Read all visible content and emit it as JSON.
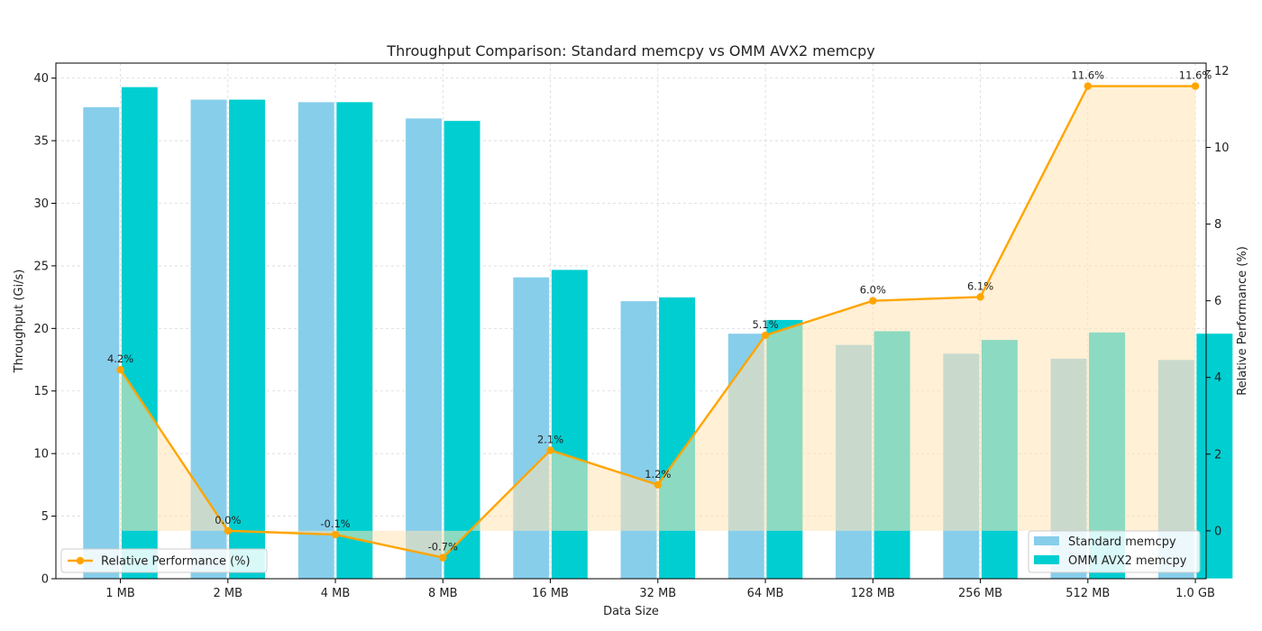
{
  "chart_data": {
    "type": "bar",
    "title": "Throughput Comparison: Standard memcpy vs OMM AVX2 memcpy",
    "xlabel": "Data Size",
    "ylabel": "Throughput (Gi/s)",
    "y2label": "Relative Performance (%)",
    "categories": [
      "1 MB",
      "2 MB",
      "4 MB",
      "8 MB",
      "16 MB",
      "32 MB",
      "64 MB",
      "128 MB",
      "256 MB",
      "512 MB",
      "1.0 GB"
    ],
    "series": [
      {
        "name": "Standard memcpy",
        "axis": "left",
        "kind": "bar",
        "color": "#87CEEB",
        "values": [
          37.7,
          38.3,
          38.1,
          36.8,
          24.1,
          22.2,
          19.6,
          18.7,
          18.0,
          17.6,
          17.5
        ]
      },
      {
        "name": "OMM AVX2 memcpy",
        "axis": "left",
        "kind": "bar",
        "color": "#00CED1",
        "values": [
          39.3,
          38.3,
          38.1,
          36.6,
          24.7,
          22.5,
          20.7,
          19.8,
          19.1,
          19.7,
          19.6
        ]
      },
      {
        "name": "Relative Performance (%)",
        "axis": "right",
        "kind": "line",
        "color": "#FFA500",
        "values": [
          4.2,
          0.0,
          -0.1,
          -0.7,
          2.1,
          1.2,
          5.1,
          6.0,
          6.1,
          11.6,
          11.6
        ],
        "labels": [
          "4.2%",
          "0.0%",
          "-0.1%",
          "-0.7%",
          "2.1%",
          "1.2%",
          "5.1%",
          "6.0%",
          "6.1%",
          "11.6%",
          "11.6%"
        ]
      }
    ],
    "ylim": [
      0,
      41.2
    ],
    "yticks": [
      0,
      5,
      10,
      15,
      20,
      25,
      30,
      35,
      40
    ],
    "y2lim": [
      -1.25,
      12.2
    ],
    "y2ticks": [
      0,
      2,
      4,
      6,
      8,
      10,
      12
    ],
    "fill_color": "#FFE4B5",
    "grid": true,
    "legends": [
      {
        "placement": "lower-left",
        "entries": [
          "Relative Performance (%)"
        ]
      },
      {
        "placement": "lower-right",
        "entries": [
          "Standard memcpy",
          "OMM AVX2 memcpy"
        ]
      }
    ]
  }
}
